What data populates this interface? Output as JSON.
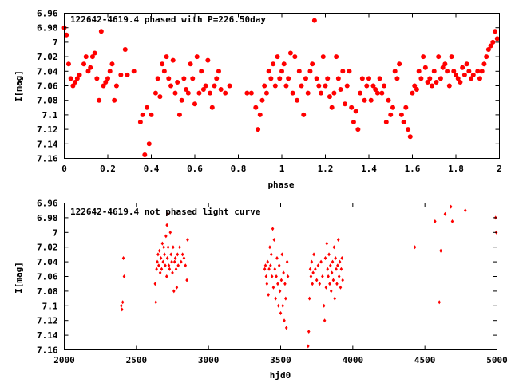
{
  "chart_data": [
    {
      "type": "scatter",
      "title": "122642-4619.4 phased with P=226.50day",
      "xlabel": "phase",
      "ylabel": "I[mag]",
      "xlim": [
        0,
        2
      ],
      "ylim": [
        7.16,
        6.96
      ],
      "y_inverted": true,
      "xticks": [
        "0",
        "0.2",
        "0.4",
        "0.6",
        "0.8",
        "1",
        "1.2",
        "1.4",
        "1.6",
        "1.8",
        "2"
      ],
      "yticks": [
        "6.96",
        "6.98",
        "7",
        "7.02",
        "7.04",
        "7.06",
        "7.08",
        "7.1",
        "7.12",
        "7.14",
        "7.16"
      ],
      "marker_color": "#ff0000",
      "marker": "filled-circle",
      "points": [
        [
          0.0,
          6.98
        ],
        [
          0.01,
          6.99
        ],
        [
          0.02,
          7.03
        ],
        [
          0.03,
          7.05
        ],
        [
          0.04,
          7.06
        ],
        [
          0.05,
          7.055
        ],
        [
          0.06,
          7.05
        ],
        [
          0.07,
          7.045
        ],
        [
          0.09,
          7.03
        ],
        [
          0.1,
          7.02
        ],
        [
          0.11,
          7.04
        ],
        [
          0.12,
          7.035
        ],
        [
          0.13,
          7.02
        ],
        [
          0.14,
          7.015
        ],
        [
          0.15,
          7.05
        ],
        [
          0.16,
          7.08
        ],
        [
          0.17,
          6.985
        ],
        [
          0.18,
          7.06
        ],
        [
          0.19,
          7.055
        ],
        [
          0.2,
          7.05
        ],
        [
          0.21,
          7.04
        ],
        [
          0.22,
          7.03
        ],
        [
          0.23,
          7.08
        ],
        [
          0.24,
          7.06
        ],
        [
          0.26,
          7.045
        ],
        [
          0.28,
          7.01
        ],
        [
          0.29,
          7.045
        ],
        [
          0.32,
          7.04
        ],
        [
          0.35,
          7.11
        ],
        [
          0.36,
          7.1
        ],
        [
          0.37,
          7.155
        ],
        [
          0.38,
          7.09
        ],
        [
          0.39,
          7.14
        ],
        [
          0.4,
          7.1
        ],
        [
          0.42,
          7.07
        ],
        [
          0.43,
          7.05
        ],
        [
          0.44,
          7.075
        ],
        [
          0.45,
          7.03
        ],
        [
          0.46,
          7.04
        ],
        [
          0.47,
          7.02
        ],
        [
          0.48,
          7.05
        ],
        [
          0.49,
          7.06
        ],
        [
          0.5,
          7.025
        ],
        [
          0.51,
          7.07
        ],
        [
          0.52,
          7.055
        ],
        [
          0.53,
          7.1
        ],
        [
          0.54,
          7.08
        ],
        [
          0.55,
          7.05
        ],
        [
          0.56,
          7.065
        ],
        [
          0.57,
          7.07
        ],
        [
          0.58,
          7.03
        ],
        [
          0.59,
          7.05
        ],
        [
          0.6,
          7.085
        ],
        [
          0.61,
          7.02
        ],
        [
          0.62,
          7.07
        ],
        [
          0.63,
          7.04
        ],
        [
          0.64,
          7.065
        ],
        [
          0.65,
          7.06
        ],
        [
          0.66,
          7.025
        ],
        [
          0.67,
          7.07
        ],
        [
          0.68,
          7.09
        ],
        [
          0.69,
          7.06
        ],
        [
          0.7,
          7.05
        ],
        [
          0.71,
          7.04
        ],
        [
          0.72,
          7.065
        ],
        [
          0.74,
          7.07
        ],
        [
          0.76,
          7.06
        ],
        [
          0.84,
          7.07
        ],
        [
          0.86,
          7.07
        ],
        [
          0.88,
          7.09
        ],
        [
          0.89,
          7.12
        ],
        [
          0.9,
          7.1
        ],
        [
          0.91,
          7.08
        ],
        [
          0.92,
          7.06
        ],
        [
          0.93,
          7.07
        ],
        [
          0.94,
          7.04
        ],
        [
          0.95,
          7.05
        ],
        [
          0.96,
          7.03
        ],
        [
          0.97,
          7.06
        ],
        [
          0.98,
          7.02
        ],
        [
          0.99,
          7.05
        ],
        [
          1.0,
          7.04
        ],
        [
          1.01,
          7.03
        ],
        [
          1.02,
          7.06
        ],
        [
          1.03,
          7.05
        ],
        [
          1.04,
          7.015
        ],
        [
          1.05,
          7.07
        ],
        [
          1.06,
          7.02
        ],
        [
          1.07,
          7.08
        ],
        [
          1.08,
          7.04
        ],
        [
          1.09,
          7.06
        ],
        [
          1.1,
          7.1
        ],
        [
          1.11,
          7.05
        ],
        [
          1.12,
          7.07
        ],
        [
          1.13,
          7.04
        ],
        [
          1.14,
          7.03
        ],
        [
          1.15,
          6.97
        ],
        [
          1.16,
          7.05
        ],
        [
          1.17,
          7.06
        ],
        [
          1.18,
          7.07
        ],
        [
          1.19,
          7.02
        ],
        [
          1.2,
          7.06
        ],
        [
          1.21,
          7.05
        ],
        [
          1.22,
          7.075
        ],
        [
          1.23,
          7.09
        ],
        [
          1.24,
          7.07
        ],
        [
          1.25,
          7.02
        ],
        [
          1.26,
          7.05
        ],
        [
          1.27,
          7.065
        ],
        [
          1.28,
          7.04
        ],
        [
          1.29,
          7.085
        ],
        [
          1.3,
          7.06
        ],
        [
          1.31,
          7.04
        ],
        [
          1.32,
          7.09
        ],
        [
          1.33,
          7.11
        ],
        [
          1.34,
          7.095
        ],
        [
          1.35,
          7.12
        ],
        [
          1.36,
          7.07
        ],
        [
          1.37,
          7.05
        ],
        [
          1.38,
          7.08
        ],
        [
          1.39,
          7.06
        ],
        [
          1.4,
          7.05
        ],
        [
          1.41,
          7.08
        ],
        [
          1.42,
          7.06
        ],
        [
          1.43,
          7.065
        ],
        [
          1.44,
          7.07
        ],
        [
          1.45,
          7.05
        ],
        [
          1.46,
          7.07
        ],
        [
          1.47,
          7.06
        ],
        [
          1.48,
          7.11
        ],
        [
          1.49,
          7.08
        ],
        [
          1.5,
          7.1
        ],
        [
          1.51,
          7.09
        ],
        [
          1.52,
          7.04
        ],
        [
          1.53,
          7.05
        ],
        [
          1.54,
          7.03
        ],
        [
          1.55,
          7.1
        ],
        [
          1.56,
          7.11
        ],
        [
          1.57,
          7.09
        ],
        [
          1.58,
          7.12
        ],
        [
          1.59,
          7.13
        ],
        [
          1.6,
          7.07
        ],
        [
          1.61,
          7.06
        ],
        [
          1.62,
          7.065
        ],
        [
          1.63,
          7.04
        ],
        [
          1.64,
          7.05
        ],
        [
          1.65,
          7.02
        ],
        [
          1.66,
          7.035
        ],
        [
          1.67,
          7.055
        ],
        [
          1.68,
          7.05
        ],
        [
          1.69,
          7.06
        ],
        [
          1.7,
          7.04
        ],
        [
          1.71,
          7.055
        ],
        [
          1.72,
          7.02
        ],
        [
          1.73,
          7.05
        ],
        [
          1.74,
          7.035
        ],
        [
          1.75,
          7.03
        ],
        [
          1.76,
          7.04
        ],
        [
          1.77,
          7.06
        ],
        [
          1.78,
          7.02
        ],
        [
          1.79,
          7.04
        ],
        [
          1.8,
          7.045
        ],
        [
          1.81,
          7.05
        ],
        [
          1.82,
          7.055
        ],
        [
          1.83,
          7.035
        ],
        [
          1.84,
          7.045
        ],
        [
          1.85,
          7.03
        ],
        [
          1.86,
          7.04
        ],
        [
          1.87,
          7.05
        ],
        [
          1.88,
          7.045
        ],
        [
          1.9,
          7.04
        ],
        [
          1.91,
          7.05
        ],
        [
          1.92,
          7.04
        ],
        [
          1.93,
          7.03
        ],
        [
          1.94,
          7.02
        ],
        [
          1.95,
          7.01
        ],
        [
          1.96,
          7.005
        ],
        [
          1.97,
          7.0
        ],
        [
          1.98,
          6.985
        ],
        [
          1.99,
          6.995
        ]
      ]
    },
    {
      "type": "scatter",
      "title": "122642-4619.4 not phased light curve",
      "xlabel": "hjd0",
      "ylabel": "I[mag]",
      "xlim": [
        2000,
        5000
      ],
      "ylim": [
        7.16,
        6.96
      ],
      "y_inverted": true,
      "xticks": [
        "2000",
        "2500",
        "3000",
        "3500",
        "4000",
        "4500",
        "5000"
      ],
      "yticks": [
        "6.96",
        "6.98",
        "7",
        "7.02",
        "7.04",
        "7.06",
        "7.08",
        "7.1",
        "7.12",
        "7.14",
        "7.16"
      ],
      "marker_color": "#ff0000",
      "marker": "small-diamond",
      "points": [
        [
          2395,
          7.1
        ],
        [
          2400,
          7.105
        ],
        [
          2405,
          7.095
        ],
        [
          2410,
          7.035
        ],
        [
          2415,
          7.06
        ],
        [
          2630,
          7.07
        ],
        [
          2635,
          7.095
        ],
        [
          2640,
          7.05
        ],
        [
          2645,
          7.04
        ],
        [
          2650,
          7.03
        ],
        [
          2655,
          7.045
        ],
        [
          2660,
          7.025
        ],
        [
          2665,
          7.055
        ],
        [
          2670,
          7.035
        ],
        [
          2675,
          7.05
        ],
        [
          2680,
          7.015
        ],
        [
          2685,
          7.04
        ],
        [
          2690,
          7.02
        ],
        [
          2695,
          7.03
        ],
        [
          2700,
          7.045
        ],
        [
          2705,
          7.005
        ],
        [
          2710,
          7.06
        ],
        [
          2712,
          6.99
        ],
        [
          2715,
          7.035
        ],
        [
          2718,
          6.975
        ],
        [
          2720,
          7.02
        ],
        [
          2725,
          7.045
        ],
        [
          2730,
          7.05
        ],
        [
          2735,
          7.0
        ],
        [
          2740,
          7.03
        ],
        [
          2745,
          7.04
        ],
        [
          2750,
          7.055
        ],
        [
          2755,
          7.02
        ],
        [
          2760,
          7.08
        ],
        [
          2765,
          7.04
        ],
        [
          2770,
          7.035
        ],
        [
          2775,
          7.05
        ],
        [
          2780,
          7.075
        ],
        [
          2785,
          7.03
        ],
        [
          2790,
          7.045
        ],
        [
          2800,
          7.02
        ],
        [
          2810,
          7.04
        ],
        [
          2820,
          7.03
        ],
        [
          2830,
          7.035
        ],
        [
          2840,
          7.045
        ],
        [
          2850,
          7.065
        ],
        [
          2855,
          7.01
        ],
        [
          3390,
          7.05
        ],
        [
          3395,
          7.045
        ],
        [
          3400,
          7.06
        ],
        [
          3405,
          7.07
        ],
        [
          3410,
          7.04
        ],
        [
          3415,
          7.085
        ],
        [
          3420,
          7.05
        ],
        [
          3425,
          7.02
        ],
        [
          3430,
          7.045
        ],
        [
          3435,
          7.03
        ],
        [
          3440,
          7.06
        ],
        [
          3445,
          6.995
        ],
        [
          3450,
          7.075
        ],
        [
          3455,
          7.01
        ],
        [
          3460,
          7.05
        ],
        [
          3465,
          7.09
        ],
        [
          3470,
          7.06
        ],
        [
          3475,
          7.035
        ],
        [
          3480,
          7.07
        ],
        [
          3485,
          7.1
        ],
        [
          3490,
          7.045
        ],
        [
          3495,
          7.08
        ],
        [
          3500,
          7.11
        ],
        [
          3505,
          7.065
        ],
        [
          3510,
          7.03
        ],
        [
          3515,
          7.1
        ],
        [
          3520,
          7.055
        ],
        [
          3525,
          7.12
        ],
        [
          3530,
          7.07
        ],
        [
          3535,
          7.09
        ],
        [
          3540,
          7.13
        ],
        [
          3545,
          7.04
        ],
        [
          3550,
          7.06
        ],
        [
          3690,
          7.155
        ],
        [
          3695,
          7.135
        ],
        [
          3700,
          7.09
        ],
        [
          3705,
          7.05
        ],
        [
          3710,
          7.06
        ],
        [
          3715,
          7.04
        ],
        [
          3720,
          7.07
        ],
        [
          3725,
          7.055
        ],
        [
          3730,
          7.03
        ],
        [
          3740,
          7.05
        ],
        [
          3750,
          7.065
        ],
        [
          3760,
          7.045
        ],
        [
          3770,
          7.07
        ],
        [
          3780,
          7.04
        ],
        [
          3790,
          7.06
        ],
        [
          3800,
          7.1
        ],
        [
          3805,
          7.12
        ],
        [
          3810,
          7.035
        ],
        [
          3815,
          7.075
        ],
        [
          3820,
          7.015
        ],
        [
          3825,
          7.05
        ],
        [
          3830,
          7.06
        ],
        [
          3835,
          7.03
        ],
        [
          3840,
          7.07
        ],
        [
          3845,
          7.045
        ],
        [
          3850,
          7.08
        ],
        [
          3855,
          7.055
        ],
        [
          3860,
          7.04
        ],
        [
          3865,
          7.065
        ],
        [
          3870,
          7.02
        ],
        [
          3875,
          7.09
        ],
        [
          3880,
          7.035
        ],
        [
          3885,
          7.05
        ],
        [
          3890,
          7.07
        ],
        [
          3895,
          7.045
        ],
        [
          3900,
          7.01
        ],
        [
          3905,
          7.06
        ],
        [
          3910,
          7.04
        ],
        [
          3915,
          7.075
        ],
        [
          3920,
          7.05
        ],
        [
          3925,
          7.035
        ],
        [
          3930,
          7.065
        ],
        [
          4430,
          7.02
        ],
        [
          4570,
          6.985
        ],
        [
          4600,
          7.095
        ],
        [
          4610,
          7.025
        ],
        [
          4640,
          6.975
        ],
        [
          4680,
          6.965
        ],
        [
          4690,
          6.985
        ],
        [
          4780,
          6.97
        ],
        [
          4990,
          6.98
        ],
        [
          4995,
          7.0
        ]
      ]
    }
  ]
}
